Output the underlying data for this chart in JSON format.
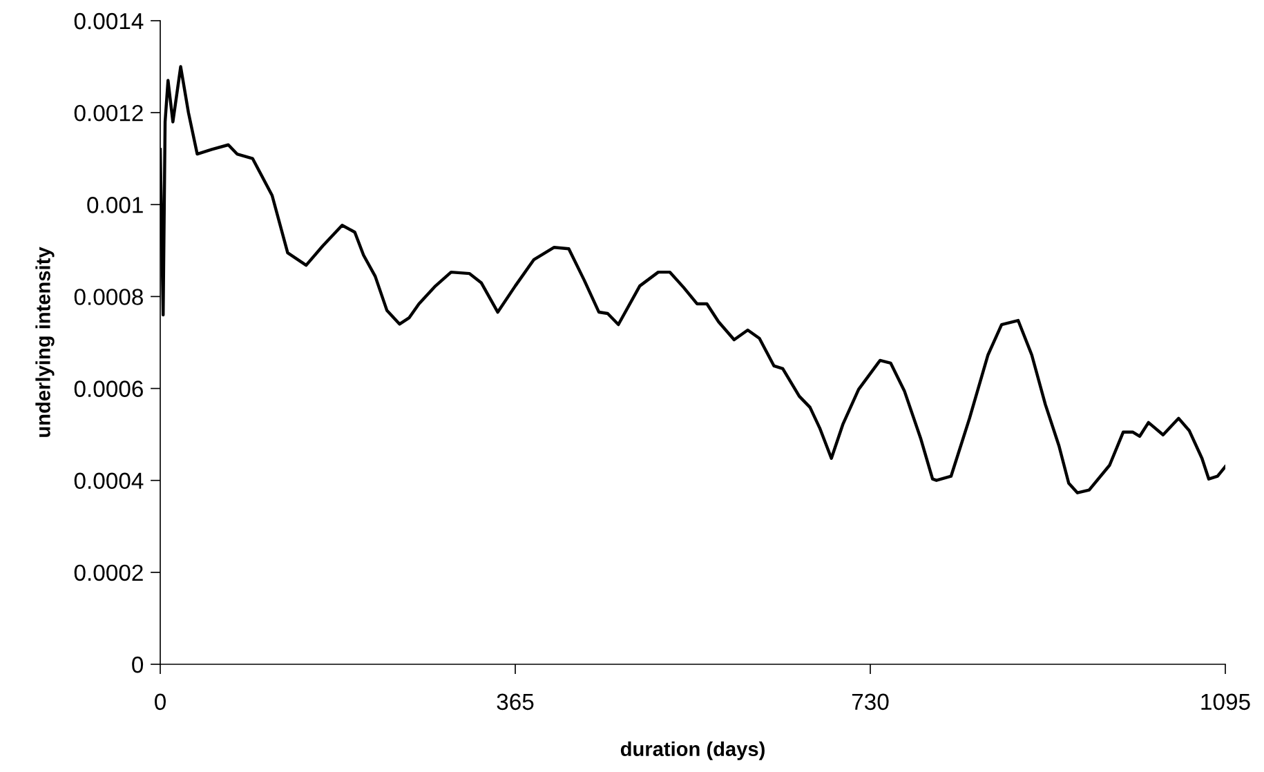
{
  "chart_data": {
    "type": "line",
    "xlabel": "duration (days)",
    "ylabel": "underlying intensity",
    "xlim": [
      0,
      1095
    ],
    "xticks": [
      0,
      365,
      730,
      1095
    ],
    "ylim": [
      0,
      0.0014
    ],
    "yticks": [
      0,
      0.0002,
      0.0004,
      0.0006,
      0.0008,
      0.001,
      0.0012,
      0.0014
    ],
    "grid": false,
    "legend": false,
    "series": [
      {
        "color": "#000000",
        "x": [
          0,
          3,
          5,
          8,
          13,
          21,
          29,
          38,
          53,
          70,
          79,
          95,
          115,
          131,
          150,
          167,
          187,
          200,
          209,
          221,
          233,
          246,
          256,
          266,
          283,
          299,
          318,
          330,
          347,
          365,
          384,
          405,
          420,
          436,
          451,
          460,
          471,
          493,
          512,
          524,
          538,
          552,
          562,
          574,
          590,
          604,
          616,
          631,
          640,
          657,
          668,
          678,
          690,
          702,
          718,
          740,
          751,
          765,
          782,
          794,
          798,
          813,
          832,
          851,
          865,
          882,
          896,
          910,
          924,
          934,
          943,
          955,
          976,
          990,
          1000,
          1007,
          1016,
          1031,
          1047,
          1058,
          1071,
          1078,
          1087,
          1095
        ],
        "values": [
          0.00112,
          0.00076,
          0.00118,
          0.00127,
          0.00118,
          0.0013,
          0.0012,
          0.00111,
          0.00112,
          0.00113,
          0.00111,
          0.0011,
          0.00102,
          0.000895,
          0.000868,
          0.00091,
          0.000955,
          0.00094,
          0.00089,
          0.000844,
          0.00077,
          0.00074,
          0.000754,
          0.000784,
          0.000823,
          0.000853,
          0.00085,
          0.00083,
          0.000766,
          0.000823,
          0.00088,
          0.000907,
          0.000904,
          0.000835,
          0.000766,
          0.000763,
          0.000739,
          0.000823,
          0.000853,
          0.000853,
          0.00082,
          0.000784,
          0.000784,
          0.000745,
          0.000706,
          0.000727,
          0.000709,
          0.000649,
          0.000643,
          0.000583,
          0.000559,
          0.000514,
          0.000448,
          0.000523,
          0.000598,
          0.000661,
          0.000655,
          0.000595,
          0.00049,
          0.000403,
          0.0004,
          0.000409,
          0.000535,
          0.000673,
          0.000739,
          0.000748,
          0.000673,
          0.000565,
          0.000475,
          0.000394,
          0.000373,
          0.000379,
          0.000433,
          0.000505,
          0.000505,
          0.000496,
          0.000526,
          0.000499,
          0.000535,
          0.000508,
          0.000448,
          0.000403,
          0.000409,
          0.00043
        ]
      }
    ]
  }
}
